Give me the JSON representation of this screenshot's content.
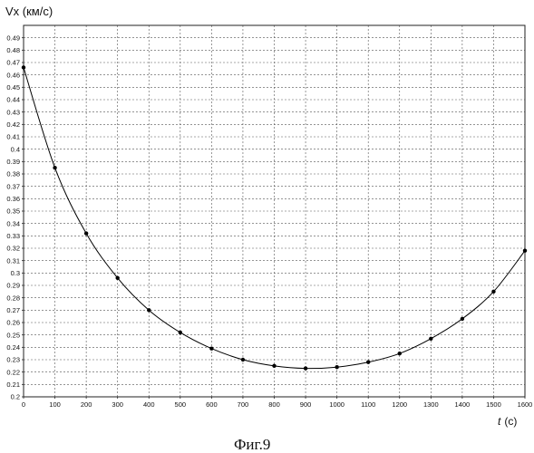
{
  "chart_data": {
    "type": "line",
    "ylabel": "Vx (км/с)",
    "xlabel_italic": "t",
    "xlabel_unit": "(с)",
    "caption": "Фиг.9",
    "xlim": [
      0,
      1600
    ],
    "ylim": [
      0.2,
      0.5
    ],
    "x_ticks": [
      "0",
      "100",
      "200",
      "300",
      "400",
      "500",
      "600",
      "700",
      "800",
      "900",
      "1000",
      "1100",
      "1200",
      "1300",
      "1400",
      "1500",
      "1600"
    ],
    "y_ticks": [
      "0.2",
      "0.21",
      "0.22",
      "0.23",
      "0.24",
      "0.25",
      "0.26",
      "0.27",
      "0.28",
      "0.29",
      "0.3",
      "0.31",
      "0.32",
      "0.33",
      "0.34",
      "0.35",
      "0.36",
      "0.37",
      "0.38",
      "0.39",
      "0.4",
      "0.41",
      "0.42",
      "0.43",
      "0.44",
      "0.45",
      "0.46",
      "0.47",
      "0.48",
      "0.49"
    ],
    "grid": true,
    "series": [
      {
        "x": [
          0,
          100,
          200,
          300,
          400,
          500,
          600,
          700,
          800,
          900,
          1000,
          1100,
          1200,
          1300,
          1400,
          1500,
          1600
        ],
        "y": [
          0.466,
          0.385,
          0.332,
          0.296,
          0.27,
          0.252,
          0.239,
          0.23,
          0.225,
          0.223,
          0.224,
          0.228,
          0.235,
          0.247,
          0.263,
          0.285,
          0.318
        ],
        "color": "#000000"
      }
    ]
  }
}
